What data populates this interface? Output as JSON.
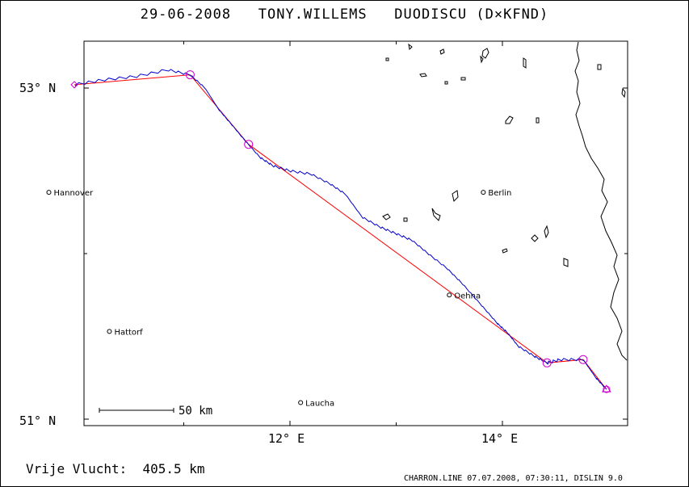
{
  "header": {
    "title": "29-06-2008   TONY.WILLEMS   DUODISCU (D×KFND)"
  },
  "axes": {
    "lat_labels": [
      {
        "text": "53° N",
        "value": 53
      },
      {
        "text": "51° N",
        "value": 51
      }
    ],
    "lon_labels": [
      {
        "text": "12° E",
        "value": 12
      },
      {
        "text": "14° E",
        "value": 14
      }
    ]
  },
  "cities": [
    {
      "name": "Hannover",
      "lon": 9.73,
      "lat": 52.37
    },
    {
      "name": "Berlin",
      "lon": 13.82,
      "lat": 52.37
    },
    {
      "name": "Oehna",
      "lon": 13.5,
      "lat": 51.75
    },
    {
      "name": "Hattorf",
      "lon": 10.3,
      "lat": 51.53
    },
    {
      "name": "Laucha",
      "lon": 12.1,
      "lat": 51.1
    }
  ],
  "scale_bar": {
    "label": "50 km"
  },
  "footer": {
    "distance_label": "Vrije Vlucht:  405.5 km",
    "program_info": "CHARRON.LINE 07.07.2008, 07:30:11, DISLIN 9.0"
  },
  "colors": {
    "track": "#0000cc",
    "task_line": "#ff0000",
    "turnpoint": "#cc00cc",
    "border": "#000000"
  },
  "map_data": {
    "lon_range": [
      9.1,
      15.2
    ],
    "lat_range": [
      50.98,
      53.2
    ],
    "task_points": [
      [
        9.97,
        53.02
      ],
      [
        11.06,
        53.08
      ],
      [
        11.61,
        52.66
      ],
      [
        14.42,
        51.34
      ],
      [
        14.76,
        51.36
      ],
      [
        14.98,
        51.18
      ]
    ],
    "track": [
      [
        9.97,
        53.02
      ],
      [
        10.25,
        53.05
      ],
      [
        10.55,
        53.07
      ],
      [
        10.85,
        53.11
      ],
      [
        11.06,
        53.08
      ],
      [
        11.2,
        53.0
      ],
      [
        11.33,
        52.87
      ],
      [
        11.45,
        52.78
      ],
      [
        11.58,
        52.68
      ],
      [
        11.72,
        52.58
      ],
      [
        11.84,
        52.53
      ],
      [
        12.0,
        52.5
      ],
      [
        12.2,
        52.48
      ],
      [
        12.38,
        52.42
      ],
      [
        12.52,
        52.36
      ],
      [
        12.68,
        52.22
      ],
      [
        12.85,
        52.16
      ],
      [
        13.0,
        52.12
      ],
      [
        13.15,
        52.08
      ],
      [
        13.3,
        52.0
      ],
      [
        13.48,
        51.91
      ],
      [
        13.62,
        51.82
      ],
      [
        13.8,
        51.69
      ],
      [
        13.95,
        51.58
      ],
      [
        14.05,
        51.52
      ],
      [
        14.15,
        51.44
      ],
      [
        14.3,
        51.38
      ],
      [
        14.42,
        51.34
      ],
      [
        14.55,
        51.36
      ],
      [
        14.76,
        51.36
      ],
      [
        14.88,
        51.25
      ],
      [
        14.98,
        51.18
      ]
    ]
  }
}
